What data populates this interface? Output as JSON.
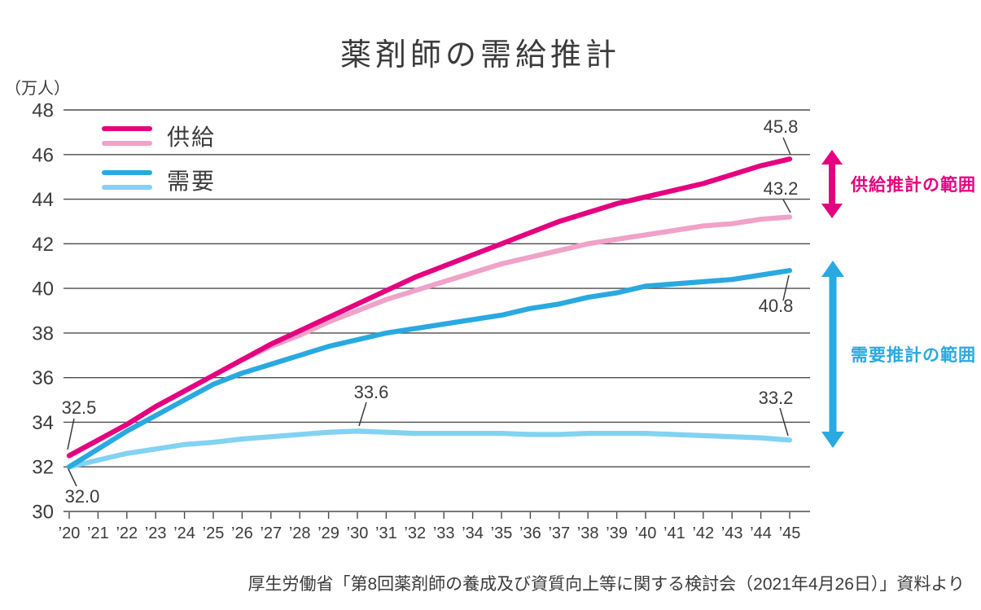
{
  "title": "薬剤師の需給推計",
  "y_axis_unit": "（万人）",
  "legend": {
    "supply_label": "供給",
    "demand_label": "需要"
  },
  "range_annotations": {
    "supply_range_label": "供給推計の範囲",
    "demand_range_label": "需要推計の範囲"
  },
  "footer": "厚生労働省「第8回薬剤師の養成及び資質向上等に関する検討会（2021年4月26日）」資料より",
  "colors": {
    "supply_high": "#e4007f",
    "supply_low": "#f0a2c8",
    "demand_high": "#29a9e0",
    "demand_low": "#82d2f2",
    "text": "#3b3b3b",
    "grid": "#4b4b4b"
  },
  "chart_data": {
    "type": "line",
    "title": "薬剤師の需給推計",
    "ylabel": "（万人）",
    "ylim": [
      30,
      48
    ],
    "y_ticks": [
      30,
      32,
      34,
      36,
      38,
      40,
      42,
      44,
      46,
      48
    ],
    "grid": "horizontal",
    "legend_position": "top-left",
    "years": [
      20,
      21,
      22,
      23,
      24,
      25,
      26,
      27,
      28,
      29,
      30,
      31,
      32,
      33,
      34,
      35,
      36,
      37,
      38,
      39,
      40,
      41,
      42,
      43,
      44,
      45
    ],
    "x_tick_labels": [
      "’20",
      "’21",
      "’22",
      "’23",
      "’24",
      "’25",
      "’26",
      "’27",
      "’28",
      "’29",
      "’30",
      "’31",
      "’32",
      "’33",
      "’34",
      "’35",
      "’36",
      "’37",
      "’38",
      "’39",
      "’40",
      "’41",
      "’42",
      "’43",
      "’44",
      "’45"
    ],
    "series": [
      {
        "key": "demand_low",
        "legend_label": "需要",
        "color": "#82d2f2",
        "values": [
          32.0,
          32.3,
          32.6,
          32.8,
          33.0,
          33.1,
          33.25,
          33.35,
          33.45,
          33.55,
          33.6,
          33.55,
          33.5,
          33.5,
          33.5,
          33.5,
          33.45,
          33.45,
          33.5,
          33.5,
          33.5,
          33.45,
          33.4,
          33.35,
          33.3,
          33.2
        ]
      },
      {
        "key": "demand_high",
        "legend_label": "需要",
        "color": "#29a9e0",
        "values": [
          32.0,
          32.8,
          33.6,
          34.3,
          35.0,
          35.7,
          36.2,
          36.6,
          37.0,
          37.4,
          37.7,
          38.0,
          38.2,
          38.4,
          38.6,
          38.8,
          39.1,
          39.3,
          39.6,
          39.8,
          40.1,
          40.2,
          40.3,
          40.4,
          40.6,
          40.8
        ]
      },
      {
        "key": "supply_low",
        "legend_label": "供給",
        "color": "#f0a2c8",
        "values": [
          32.5,
          33.2,
          33.9,
          34.7,
          35.4,
          36.1,
          36.8,
          37.4,
          37.9,
          38.5,
          39.0,
          39.5,
          39.9,
          40.3,
          40.7,
          41.1,
          41.4,
          41.7,
          42.0,
          42.2,
          42.4,
          42.6,
          42.8,
          42.9,
          43.1,
          43.2
        ]
      },
      {
        "key": "supply_high",
        "legend_label": "供給",
        "color": "#e4007f",
        "values": [
          32.5,
          33.2,
          33.9,
          34.7,
          35.4,
          36.1,
          36.8,
          37.5,
          38.1,
          38.7,
          39.3,
          39.9,
          40.5,
          41.0,
          41.5,
          42.0,
          42.5,
          43.0,
          43.4,
          43.8,
          44.1,
          44.4,
          44.7,
          45.1,
          45.5,
          45.8
        ]
      }
    ],
    "point_labels": [
      {
        "text": "32.5",
        "year": 20,
        "value": 32.5
      },
      {
        "text": "32.0",
        "year": 20,
        "value": 32.0
      },
      {
        "text": "33.6",
        "year": 30,
        "value": 33.6
      },
      {
        "text": "33.2",
        "year": 45,
        "value": 33.2
      },
      {
        "text": "45.8",
        "year": 45,
        "value": 45.8
      },
      {
        "text": "43.2",
        "year": 45,
        "value": 43.2
      },
      {
        "text": "40.8",
        "year": 45,
        "value": 40.8
      }
    ]
  }
}
